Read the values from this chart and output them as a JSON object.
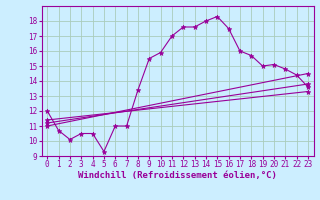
{
  "xlabel": "Windchill (Refroidissement éolien,°C)",
  "bg_color": "#cceeff",
  "line_color": "#990099",
  "grid_color": "#aaccbb",
  "xlim": [
    -0.5,
    23.5
  ],
  "ylim": [
    9,
    19
  ],
  "xticks": [
    0,
    1,
    2,
    3,
    4,
    5,
    6,
    7,
    8,
    9,
    10,
    11,
    12,
    13,
    14,
    15,
    16,
    17,
    18,
    19,
    20,
    21,
    22,
    23
  ],
  "yticks": [
    9,
    10,
    11,
    12,
    13,
    14,
    15,
    16,
    17,
    18
  ],
  "line1_x": [
    0,
    1,
    2,
    3,
    4,
    5,
    6,
    7,
    8,
    9,
    10,
    11,
    12,
    13,
    14,
    15,
    16,
    17,
    18,
    19,
    20,
    21,
    22,
    23
  ],
  "line1_y": [
    12,
    10.7,
    10.1,
    10.5,
    10.5,
    9.3,
    11.0,
    11.0,
    13.4,
    15.5,
    15.9,
    17.0,
    17.6,
    17.6,
    18.0,
    18.3,
    17.5,
    16.0,
    15.7,
    15.0,
    15.1,
    14.8,
    14.4,
    13.6
  ],
  "line2_x": [
    0,
    23
  ],
  "line2_y": [
    11.0,
    14.5
  ],
  "line3_x": [
    0,
    23
  ],
  "line3_y": [
    11.2,
    13.8
  ],
  "line4_x": [
    0,
    23
  ],
  "line4_y": [
    11.4,
    13.3
  ],
  "tick_fontsize": 5.5,
  "label_fontsize": 6.5
}
